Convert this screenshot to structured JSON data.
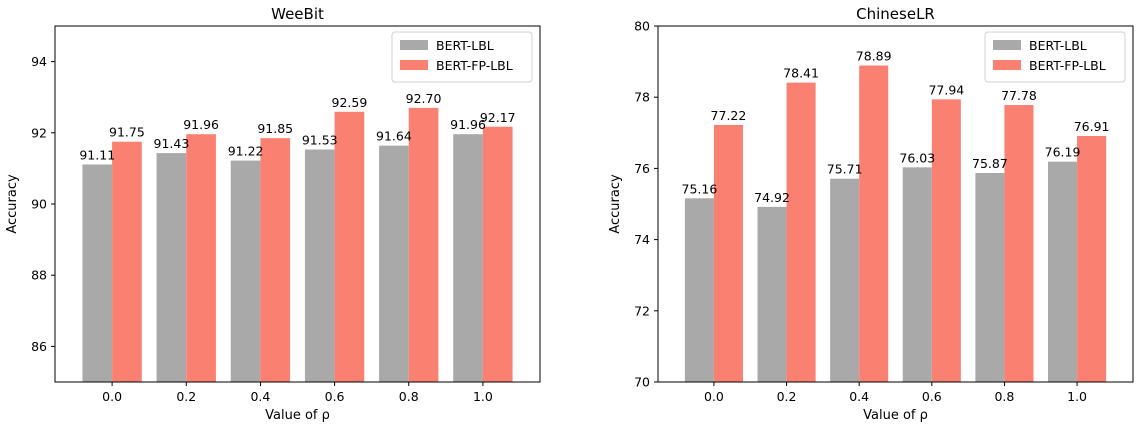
{
  "colors": {
    "bert_lbl": "#a9a9a9",
    "bert_fp_lbl": "#fa8072"
  },
  "chart_data": [
    {
      "type": "bar",
      "title": "WeeBit",
      "xlabel": "Value of ρ",
      "ylabel": "Accuracy",
      "categories": [
        "0.0",
        "0.2",
        "0.4",
        "0.6",
        "0.8",
        "1.0"
      ],
      "ylim": [
        85,
        95
      ],
      "yticks": [
        "86",
        "88",
        "90",
        "92",
        "94"
      ],
      "legend": "top-right",
      "grid": false,
      "series": [
        {
          "name": "BERT-LBL",
          "values": [
            91.11,
            91.43,
            91.22,
            91.53,
            91.64,
            91.96
          ],
          "labels": [
            "91.11",
            "91.43",
            "91.22",
            "91.53",
            "91.64",
            "91.96"
          ]
        },
        {
          "name": "BERT-FP-LBL",
          "values": [
            91.75,
            91.96,
            91.85,
            92.59,
            92.7,
            92.17
          ],
          "labels": [
            "91.75",
            "91.96",
            "91.85",
            "92.59",
            "92.70",
            "92.17"
          ]
        }
      ]
    },
    {
      "type": "bar",
      "title": "ChineseLR",
      "xlabel": "Value of ρ",
      "ylabel": "Accuracy",
      "categories": [
        "0.0",
        "0.2",
        "0.4",
        "0.6",
        "0.8",
        "1.0"
      ],
      "ylim": [
        70,
        80
      ],
      "yticks": [
        "70",
        "72",
        "74",
        "76",
        "78",
        "80"
      ],
      "legend": "top-right",
      "grid": false,
      "series": [
        {
          "name": "BERT-LBL",
          "values": [
            75.16,
            74.92,
            75.71,
            76.03,
            75.87,
            76.19
          ],
          "labels": [
            "75.16",
            "74.92",
            "75.71",
            "76.03",
            "75.87",
            "76.19"
          ]
        },
        {
          "name": "BERT-FP-LBL",
          "values": [
            77.22,
            78.41,
            78.89,
            77.94,
            77.78,
            76.91
          ],
          "labels": [
            "77.22",
            "78.41",
            "78.89",
            "77.94",
            "77.78",
            "76.91"
          ]
        }
      ]
    }
  ]
}
